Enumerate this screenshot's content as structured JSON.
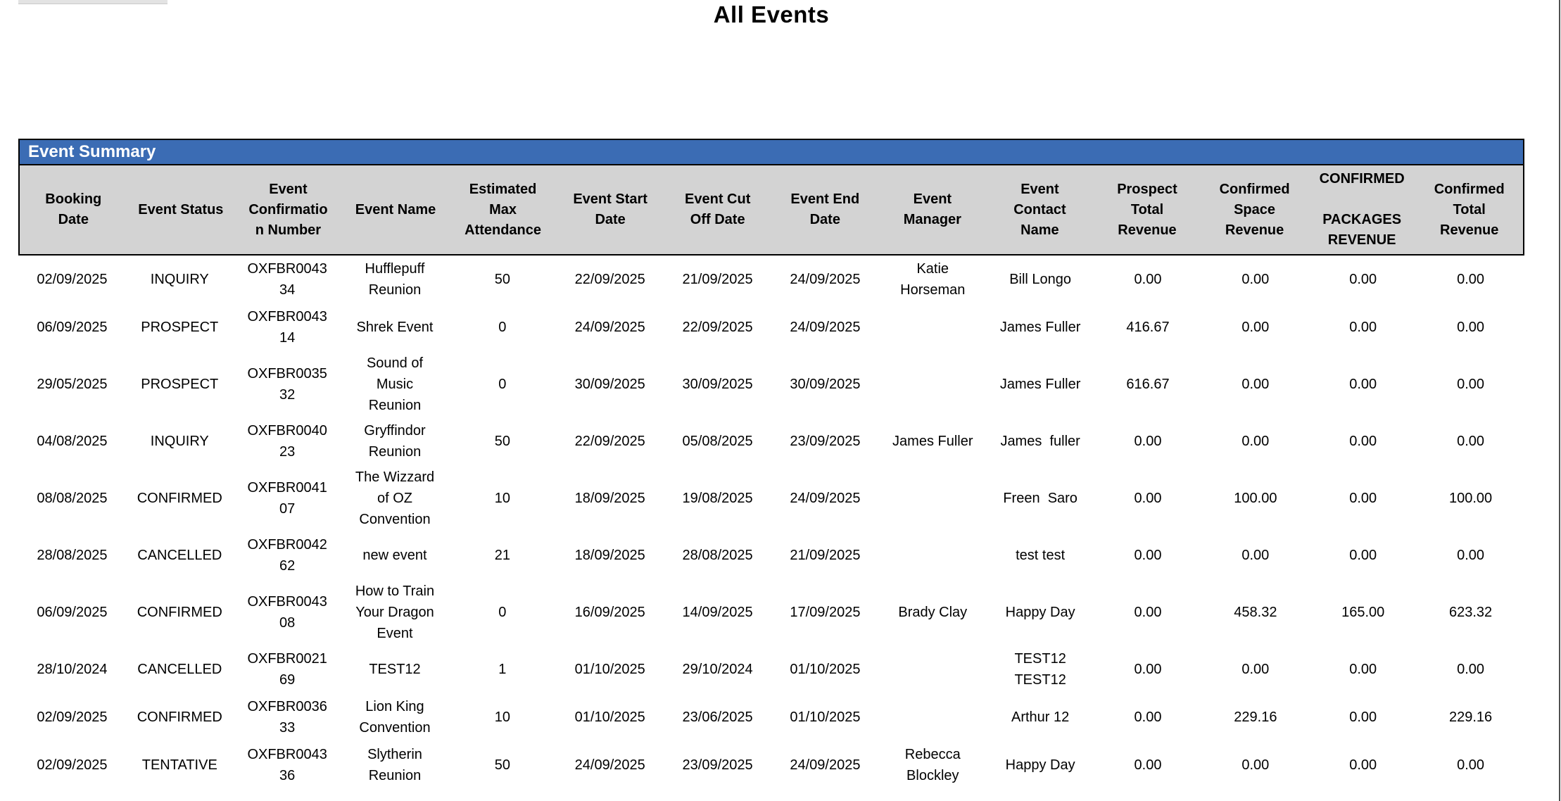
{
  "page": {
    "title": "All Events"
  },
  "colors": {
    "section_bar_bg": "#3b6cb4",
    "section_bar_text": "#ffffff",
    "column_header_bg": "#d3d3d3",
    "border": "#000000",
    "data_text": "#000000"
  },
  "table": {
    "section_title": "Event Summary",
    "columns": [
      "Booking\nDate",
      "Event Status",
      "Event\nConfirmatio\nn Number",
      "Event Name",
      "Estimated\nMax\nAttendance",
      "Event Start\nDate",
      "Event Cut\nOff Date",
      "Event End\nDate",
      "Event\nManager",
      "Event\nContact\nName",
      "Prospect\nTotal\nRevenue",
      "Confirmed\nSpace\nRevenue",
      "CONFIRMED\n\nPACKAGES\nREVENUE",
      "Confirmed\nTotal\nRevenue"
    ],
    "rows": [
      {
        "cells": [
          "02/09/2025",
          "INQUIRY",
          "OXFBR0043\n34",
          "Hufflepuff\nReunion",
          "50",
          "22/09/2025",
          "21/09/2025",
          "24/09/2025",
          "Katie\nHorseman",
          "Bill Longo",
          "0.00",
          "0.00",
          "0.00",
          "0.00"
        ]
      },
      {
        "cells": [
          "06/09/2025",
          "PROSPECT",
          "OXFBR0043\n14",
          "Shrek Event",
          "0",
          "24/09/2025",
          "22/09/2025",
          "24/09/2025",
          "",
          "James Fuller",
          "416.67",
          "0.00",
          "0.00",
          "0.00"
        ]
      },
      {
        "cells": [
          "29/05/2025",
          "PROSPECT",
          "OXFBR0035\n32",
          "Sound of\nMusic\nReunion",
          "0",
          "30/09/2025",
          "30/09/2025",
          "30/09/2025",
          "",
          "James Fuller",
          "616.67",
          "0.00",
          "0.00",
          "0.00"
        ]
      },
      {
        "cells": [
          "04/08/2025",
          "INQUIRY",
          "OXFBR0040\n23",
          "Gryffindor\nReunion",
          "50",
          "22/09/2025",
          "05/08/2025",
          "23/09/2025",
          "James Fuller",
          "James  fuller",
          "0.00",
          "0.00",
          "0.00",
          "0.00"
        ]
      },
      {
        "cells": [
          "08/08/2025",
          "CONFIRMED",
          "OXFBR0041\n07",
          "The Wizzard\nof OZ\nConvention",
          "10",
          "18/09/2025",
          "19/08/2025",
          "24/09/2025",
          "",
          "Freen  Saro",
          "0.00",
          "100.00",
          "0.00",
          "100.00"
        ]
      },
      {
        "cells": [
          "28/08/2025",
          "CANCELLED",
          "OXFBR0042\n62",
          "new event",
          "21",
          "18/09/2025",
          "28/08/2025",
          "21/09/2025",
          "",
          "test test",
          "0.00",
          "0.00",
          "0.00",
          "0.00"
        ]
      },
      {
        "cells": [
          "06/09/2025",
          "CONFIRMED",
          "OXFBR0043\n08",
          "How to Train\nYour Dragon\nEvent",
          "0",
          "16/09/2025",
          "14/09/2025",
          "17/09/2025",
          "Brady Clay",
          "Happy Day",
          "0.00",
          "458.32",
          "165.00",
          "623.32"
        ]
      },
      {
        "cells": [
          "28/10/2024",
          "CANCELLED",
          "OXFBR0021\n69",
          "TEST12",
          "1",
          "01/10/2025",
          "29/10/2024",
          "01/10/2025",
          "",
          "TEST12\nTEST12",
          "0.00",
          "0.00",
          "0.00",
          "0.00"
        ]
      },
      {
        "cells": [
          "02/09/2025",
          "CONFIRMED",
          "OXFBR0036\n33",
          "Lion King\nConvention",
          "10",
          "01/10/2025",
          "23/06/2025",
          "01/10/2025",
          "",
          "Arthur 12",
          "0.00",
          "229.16",
          "0.00",
          "229.16"
        ]
      },
      {
        "cells": [
          "02/09/2025",
          "TENTATIVE",
          "OXFBR0043\n36",
          "Slytherin\nReunion",
          "50",
          "24/09/2025",
          "23/09/2025",
          "24/09/2025",
          "Rebecca\nBlockley",
          "Happy Day",
          "0.00",
          "0.00",
          "0.00",
          "0.00"
        ]
      }
    ]
  }
}
